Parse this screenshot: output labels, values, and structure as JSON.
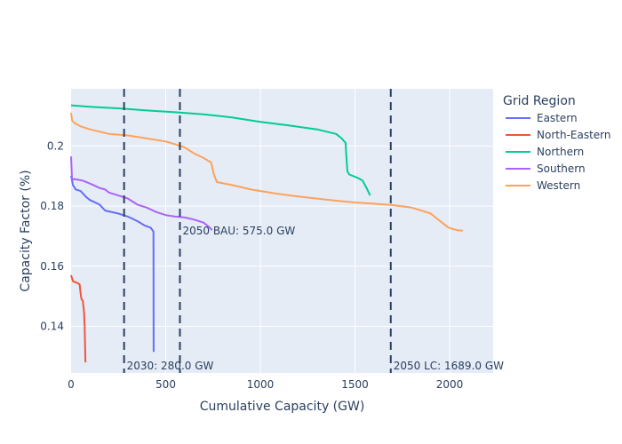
{
  "chart_data": {
    "type": "line",
    "xlabel": "Cumulative Capacity (GW)",
    "ylabel": "Capacity Factor (%)",
    "xlim": [
      0,
      2230
    ],
    "ylim": [
      0.1245,
      0.219
    ],
    "x_ticks": [
      0,
      500,
      1000,
      1500,
      2000
    ],
    "y_ticks": [
      0.14,
      0.16,
      0.18,
      0.2
    ],
    "x_tick_labels": [
      "0",
      "500",
      "1000",
      "1500",
      "2000"
    ],
    "y_tick_labels": [
      "0.14",
      "0.16",
      "0.18",
      "0.2"
    ],
    "legend": {
      "title": "Grid Region",
      "position": "right"
    },
    "background": "#e5ecf6",
    "grid": true,
    "series": [
      {
        "name": "Eastern",
        "color": "#636efa",
        "points": [
          [
            0,
            0.19
          ],
          [
            10,
            0.187
          ],
          [
            25,
            0.1855
          ],
          [
            50,
            0.185
          ],
          [
            80,
            0.183
          ],
          [
            100,
            0.182
          ],
          [
            150,
            0.1805
          ],
          [
            180,
            0.1785
          ],
          [
            250,
            0.1775
          ],
          [
            300,
            0.1765
          ],
          [
            350,
            0.175
          ],
          [
            390,
            0.1735
          ],
          [
            420,
            0.1728
          ],
          [
            435,
            0.1715
          ],
          [
            436,
            0.1315
          ]
        ]
      },
      {
        "name": "North-Eastern",
        "color": "#ef553b",
        "points": [
          [
            0,
            0.157
          ],
          [
            10,
            0.155
          ],
          [
            30,
            0.1545
          ],
          [
            45,
            0.154
          ],
          [
            50,
            0.151
          ],
          [
            55,
            0.149
          ],
          [
            62,
            0.1485
          ],
          [
            68,
            0.145
          ],
          [
            72,
            0.14
          ],
          [
            75,
            0.13
          ],
          [
            76,
            0.128
          ]
        ]
      },
      {
        "name": "Northern",
        "color": "#00cc96",
        "points": [
          [
            0,
            0.2135
          ],
          [
            100,
            0.213
          ],
          [
            250,
            0.2125
          ],
          [
            400,
            0.2118
          ],
          [
            550,
            0.2112
          ],
          [
            700,
            0.2105
          ],
          [
            850,
            0.2095
          ],
          [
            1000,
            0.208
          ],
          [
            1150,
            0.2068
          ],
          [
            1300,
            0.2055
          ],
          [
            1400,
            0.204
          ],
          [
            1430,
            0.2025
          ],
          [
            1450,
            0.201
          ],
          [
            1455,
            0.196
          ],
          [
            1460,
            0.1915
          ],
          [
            1470,
            0.1905
          ],
          [
            1510,
            0.1895
          ],
          [
            1540,
            0.1885
          ],
          [
            1565,
            0.1855
          ],
          [
            1580,
            0.1835
          ]
        ]
      },
      {
        "name": "Southern",
        "color": "#ab63fa",
        "points": [
          [
            0,
            0.1965
          ],
          [
            5,
            0.1885
          ],
          [
            15,
            0.189
          ],
          [
            60,
            0.1885
          ],
          [
            100,
            0.1875
          ],
          [
            150,
            0.186
          ],
          [
            180,
            0.1855
          ],
          [
            200,
            0.1845
          ],
          [
            250,
            0.1835
          ],
          [
            300,
            0.1825
          ],
          [
            350,
            0.1805
          ],
          [
            400,
            0.1795
          ],
          [
            450,
            0.178
          ],
          [
            500,
            0.177
          ],
          [
            550,
            0.1765
          ],
          [
            600,
            0.1762
          ],
          [
            650,
            0.1755
          ],
          [
            700,
            0.1745
          ],
          [
            730,
            0.173
          ],
          [
            745,
            0.172
          ]
        ]
      },
      {
        "name": "Western",
        "color": "#ffa15a",
        "points": [
          [
            0,
            0.211
          ],
          [
            5,
            0.2085
          ],
          [
            20,
            0.2075
          ],
          [
            50,
            0.2065
          ],
          [
            100,
            0.2055
          ],
          [
            200,
            0.204
          ],
          [
            300,
            0.2035
          ],
          [
            400,
            0.2025
          ],
          [
            500,
            0.2015
          ],
          [
            550,
            0.2005
          ],
          [
            600,
            0.1995
          ],
          [
            650,
            0.1975
          ],
          [
            700,
            0.196
          ],
          [
            740,
            0.1945
          ],
          [
            755,
            0.1905
          ],
          [
            770,
            0.188
          ],
          [
            850,
            0.187
          ],
          [
            950,
            0.1855
          ],
          [
            1000,
            0.185
          ],
          [
            1100,
            0.184
          ],
          [
            1200,
            0.1832
          ],
          [
            1300,
            0.1825
          ],
          [
            1400,
            0.1818
          ],
          [
            1500,
            0.1812
          ],
          [
            1600,
            0.1808
          ],
          [
            1700,
            0.1803
          ],
          [
            1800,
            0.1795
          ],
          [
            1850,
            0.1785
          ],
          [
            1900,
            0.1775
          ],
          [
            1930,
            0.176
          ],
          [
            1960,
            0.1745
          ],
          [
            1990,
            0.173
          ],
          [
            2010,
            0.1725
          ],
          [
            2040,
            0.172
          ],
          [
            2070,
            0.1718
          ]
        ]
      }
    ],
    "vlines": [
      {
        "x": 280,
        "label": "2030: 280.0 GW",
        "label_pos": "bottom"
      },
      {
        "x": 575,
        "label": "2050 BAU: 575.0 GW",
        "label_pos": "middle"
      },
      {
        "x": 1689,
        "label": "2050 LC: 1689.0 GW",
        "label_pos": "bottom"
      }
    ]
  }
}
